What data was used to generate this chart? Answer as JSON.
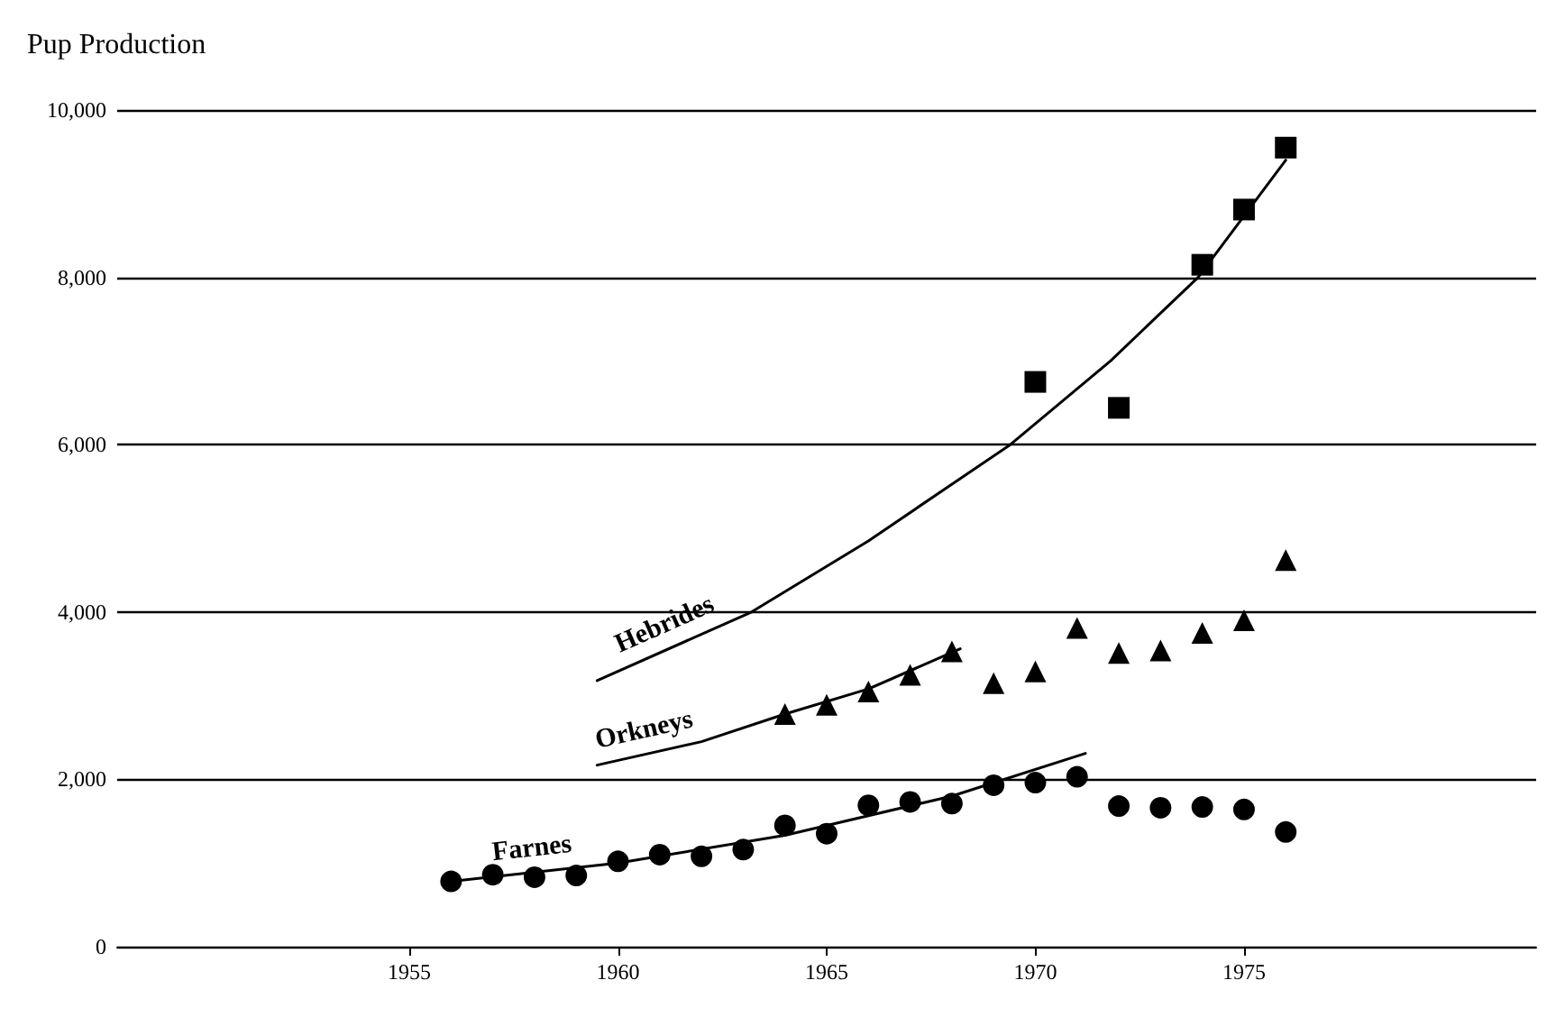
{
  "chart_data": {
    "type": "scatter",
    "ylabel": "Pup Production",
    "xlim": [
      1948,
      1982
    ],
    "xticks": [
      1955,
      1960,
      1965,
      1970,
      1975
    ],
    "ylim": [
      0,
      10000
    ],
    "yticks": [
      0,
      {
        "value": 2000,
        "label": "2,000"
      },
      {
        "value": 4000,
        "label": "4,000"
      },
      {
        "value": 6000,
        "label": "6,000"
      },
      {
        "value": 8000,
        "label": "8,000"
      },
      {
        "value": 10000,
        "label": "10,000"
      }
    ],
    "grid": "y",
    "legend": false,
    "series": [
      {
        "type": "scatter",
        "marker": "square",
        "color": "#000000",
        "x": [
          1970,
          1972,
          1974,
          1975,
          1976
        ],
        "values": [
          6750,
          6440,
          8150,
          8810,
          9550
        ]
      },
      {
        "name": "Hebrides",
        "type": "line",
        "marker": "none",
        "color": "#000000",
        "x": [
          1959.5,
          1963.2,
          1966,
          1969.4,
          1971.8,
          1973.9,
          1976
        ],
        "values": [
          3180,
          4000,
          4850,
          6000,
          7000,
          8000,
          9400
        ]
      },
      {
        "type": "scatter",
        "marker": "triangle",
        "color": "#000000",
        "x": [
          1964,
          1965,
          1966,
          1967,
          1968,
          1969,
          1970,
          1971,
          1972,
          1973,
          1974,
          1975,
          1976
        ],
        "values": [
          2780,
          2890,
          3050,
          3250,
          3530,
          3150,
          3290,
          3810,
          3510,
          3540,
          3750,
          3900,
          4620
        ]
      },
      {
        "name": "Orkneys",
        "type": "line",
        "marker": "none",
        "color": "#000000",
        "x": [
          1959.5,
          1962,
          1964,
          1966,
          1968.2
        ],
        "values": [
          2170,
          2450,
          2780,
          3080,
          3560
        ]
      },
      {
        "type": "scatter",
        "marker": "circle",
        "color": "#000000",
        "x": [
          1956,
          1957,
          1958,
          1959,
          1960,
          1961,
          1962,
          1963,
          1964,
          1965,
          1966,
          1967,
          1968,
          1969,
          1970,
          1971,
          1972,
          1973,
          1974,
          1975,
          1976
        ],
        "values": [
          780,
          860,
          830,
          850,
          1020,
          1100,
          1080,
          1160,
          1450,
          1350,
          1690,
          1730,
          1710,
          1930,
          1960,
          2030,
          1680,
          1660,
          1670,
          1640,
          1370
        ]
      },
      {
        "name": "Farnes",
        "type": "line",
        "marker": "none",
        "color": "#000000",
        "x": [
          1956,
          1960,
          1964,
          1968,
          1971.2
        ],
        "values": [
          780,
          1000,
          1330,
          1800,
          2310
        ]
      }
    ]
  }
}
